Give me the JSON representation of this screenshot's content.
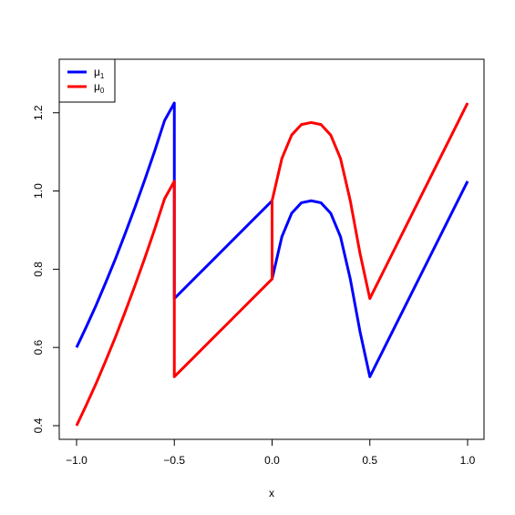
{
  "chart_data": {
    "type": "line",
    "title": "",
    "xlabel": "x",
    "ylabel": "",
    "xlim": [
      -1.0,
      1.0
    ],
    "ylim": [
      0.4,
      1.225
    ],
    "x_ticks": [
      -1.0,
      -0.5,
      0.0,
      0.5,
      1.0
    ],
    "x_tick_labels": [
      "−1.0",
      "−0.5",
      "0.0",
      "0.5",
      "1.0"
    ],
    "y_ticks": [
      0.4,
      0.6,
      0.8,
      1.0,
      1.2
    ],
    "y_tick_labels": [
      "0.4",
      "0.6",
      "0.8",
      "1.0",
      "1.2"
    ],
    "grid": false,
    "legend_position": "top-left",
    "series": [
      {
        "name": "μ",
        "subscript": "1",
        "color": "#0000ff",
        "x": [
          -1.0,
          -0.95,
          -0.9,
          -0.85,
          -0.8,
          -0.75,
          -0.7,
          -0.65,
          -0.6,
          -0.55,
          -0.5,
          -0.5,
          -0.4,
          -0.3,
          -0.2,
          -0.1,
          0.0,
          0.0,
          0.05,
          0.1,
          0.15,
          0.2,
          0.25,
          0.3,
          0.35,
          0.4,
          0.45,
          0.5,
          0.6,
          0.7,
          0.8,
          0.9,
          1.0
        ],
        "values": [
          0.6,
          0.653,
          0.708,
          0.767,
          0.828,
          0.893,
          0.96,
          1.03,
          1.103,
          1.18,
          1.225,
          0.725,
          0.775,
          0.825,
          0.875,
          0.925,
          0.975,
          0.775,
          0.883,
          0.943,
          0.97,
          0.975,
          0.97,
          0.943,
          0.883,
          0.775,
          0.64,
          0.525,
          0.625,
          0.725,
          0.825,
          0.925,
          1.025
        ]
      },
      {
        "name": "μ",
        "subscript": "0",
        "color": "#ff0000",
        "x": [
          -1.0,
          -0.95,
          -0.9,
          -0.85,
          -0.8,
          -0.75,
          -0.7,
          -0.65,
          -0.6,
          -0.55,
          -0.5,
          -0.5,
          -0.4,
          -0.3,
          -0.2,
          -0.1,
          0.0,
          0.0,
          0.05,
          0.1,
          0.15,
          0.2,
          0.25,
          0.3,
          0.35,
          0.4,
          0.45,
          0.5,
          0.6,
          0.7,
          0.8,
          0.9,
          1.0
        ],
        "values": [
          0.4,
          0.453,
          0.508,
          0.567,
          0.628,
          0.693,
          0.76,
          0.83,
          0.903,
          0.98,
          1.025,
          0.525,
          0.575,
          0.625,
          0.675,
          0.725,
          0.775,
          0.975,
          1.083,
          1.143,
          1.17,
          1.175,
          1.17,
          1.143,
          1.083,
          0.975,
          0.84,
          0.725,
          0.825,
          0.925,
          1.025,
          1.125,
          1.225
        ]
      }
    ]
  }
}
